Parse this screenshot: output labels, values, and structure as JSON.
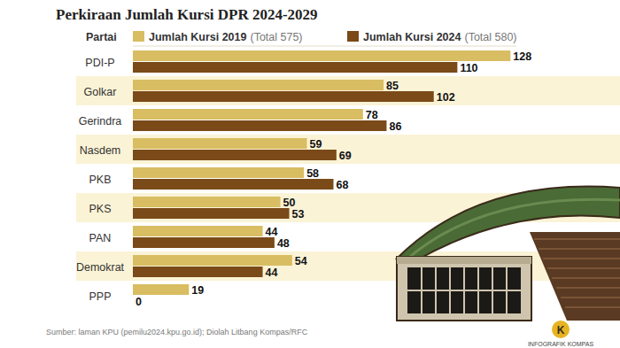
{
  "chart_data": {
    "type": "bar",
    "title": "Perkiraan Jumlah Kursi DPR 2024-2029",
    "ylabel": "Partai",
    "orientation": "horizontal",
    "categories": [
      "PDI-P",
      "Golkar",
      "Gerindra",
      "Nasdem",
      "PKB",
      "PKS",
      "PAN",
      "Demokrat",
      "PPP"
    ],
    "series": [
      {
        "name": "Jumlah Kursi 2019",
        "color": "#d8bd62",
        "values": [
          128,
          85,
          78,
          59,
          58,
          50,
          44,
          54,
          19
        ]
      },
      {
        "name": "Jumlah Kursi 2024",
        "color": "#7a4a18",
        "values": [
          110,
          102,
          86,
          69,
          68,
          53,
          48,
          44,
          0
        ]
      }
    ],
    "annotations": [
      "(Total 575)",
      "(Total 580)"
    ],
    "xlim": [
      0,
      130
    ],
    "tick_labels": false,
    "grid": false,
    "data_labels": true,
    "legend": "top",
    "source": "Sumber: laman KPU (pemilu2024.kpu.go.id); Diolah Litbang Kompas/RFC",
    "credit": "INFOGRAFIK KOMPAS",
    "logo": "K"
  }
}
